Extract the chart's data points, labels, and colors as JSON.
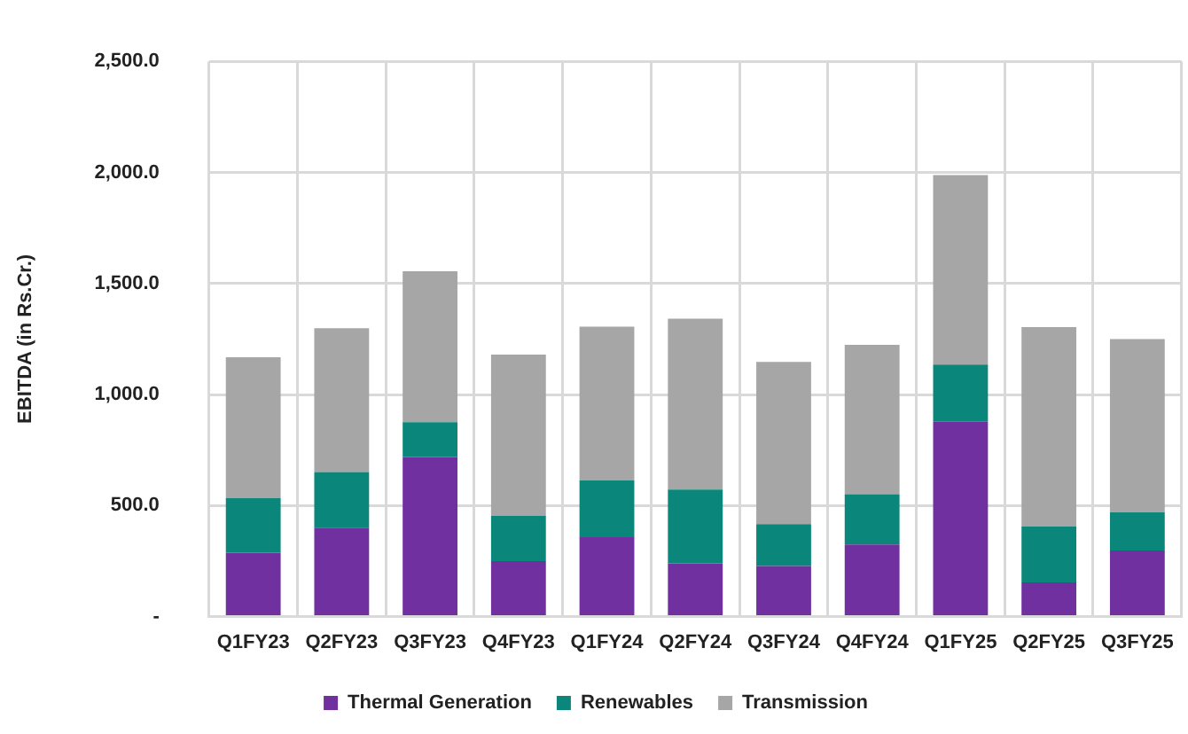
{
  "chart_data": {
    "type": "bar",
    "stacked": true,
    "ylabel": "EBITDA (in Rs.Cr.)",
    "categories": [
      "Q1FY23",
      "Q2FY23",
      "Q3FY23",
      "Q4FY23",
      "Q1FY24",
      "Q2FY24",
      "Q3FY24",
      "Q4FY24",
      "Q1FY25",
      "Q2FY25",
      "Q3FY25"
    ],
    "series": [
      {
        "name": "Thermal Generation",
        "color": "#7030a0",
        "values": [
          288,
          401,
          719,
          250,
          358,
          240,
          228,
          325,
          877,
          154,
          298
        ]
      },
      {
        "name": "Renewables",
        "color": "#0a877a",
        "values": [
          246,
          250,
          156,
          204,
          255,
          332,
          188,
          226,
          258,
          252,
          171
        ]
      },
      {
        "name": "Transmission",
        "color": "#a6a6a6",
        "values": [
          634,
          647,
          680,
          726,
          692,
          769,
          731,
          673,
          853,
          897,
          781
        ]
      }
    ],
    "ylim": [
      0,
      2500
    ],
    "yticks": [
      {
        "value": 0,
        "label": "-"
      },
      {
        "value": 500,
        "label": "500.0"
      },
      {
        "value": 1000,
        "label": "1,000.0"
      },
      {
        "value": 1500,
        "label": "1,500.0"
      },
      {
        "value": 2000,
        "label": "2,000.0"
      },
      {
        "value": 2500,
        "label": "2,500.0"
      }
    ],
    "grid": true,
    "legend": "bottom"
  }
}
